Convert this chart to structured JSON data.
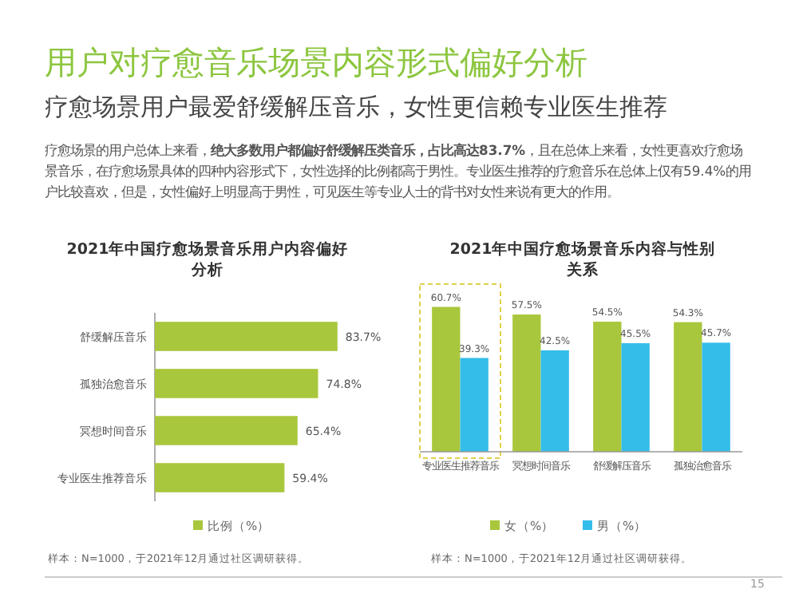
{
  "chart_data": [
    {
      "type": "other",
      "title": "用户对疗愈音乐场景内容形式偏好分析",
      "subtitle": "疗愈场景用户最爱舒缓解压音乐，女性更信赖专业医生推荐",
      "annotations": [
        "疗愈场景的用户总体上来看，**绝大多数用户都偏好舒缓解压类音乐，占比高达83.7%**，且在总体上来看，女性更喜欢疗愈场景音乐，在疗愈场景具体的四种内容形式下，女性选择的比例都高于男性。专业医生推荐的疗愈音乐在总体上仅有59.4%的用户比较喜欢，但是，女性偏好上明显高于男性，可见医生等专业人士的背书对女性来说有更大的作用。",
        "15"
      ]
    },
    {
      "type": "bar",
      "orientation": "horizontal",
      "title": "2021年中国疗愈场景音乐用户内容偏好分析",
      "categories": [
        "舒缓解压音乐",
        "孤独治愈音乐",
        "冥想时间音乐",
        "专业医生推荐音乐"
      ],
      "series": [
        {
          "name": "比例（%）",
          "color": "#a9c73c",
          "values": [
            83.7,
            74.8,
            65.4,
            59.4
          ],
          "value_labels": [
            "83.7%",
            "74.8%",
            "65.4%",
            "59.4%"
          ]
        }
      ],
      "legend": "bottom",
      "annotations": [
        "样本：N=1000，于2021年12月通过社区调研获得。"
      ]
    },
    {
      "type": "bar",
      "title": "2021年中国疗愈场景音乐内容与性别关系",
      "categories": [
        "专业医生推荐音乐",
        "冥想时间音乐",
        "舒缓解压音乐",
        "孤独治愈音乐"
      ],
      "series": [
        {
          "name": "女（%）",
          "color": "#a9c73c",
          "values": [
            60.7,
            57.5,
            54.5,
            54.3
          ],
          "value_labels": [
            "60.7%",
            "57.5%",
            "54.5%",
            "54.3%"
          ]
        },
        {
          "name": "男（%）",
          "color": "#35bde9",
          "values": [
            39.3,
            42.5,
            45.5,
            45.7
          ],
          "value_labels": [
            "39.3%",
            "42.5%",
            "45.5%",
            "45.7%"
          ]
        }
      ],
      "legend": "bottom",
      "annotations": [
        "样本：N=1000，于2021年12月通过社区调研获得。"
      ]
    }
  ]
}
